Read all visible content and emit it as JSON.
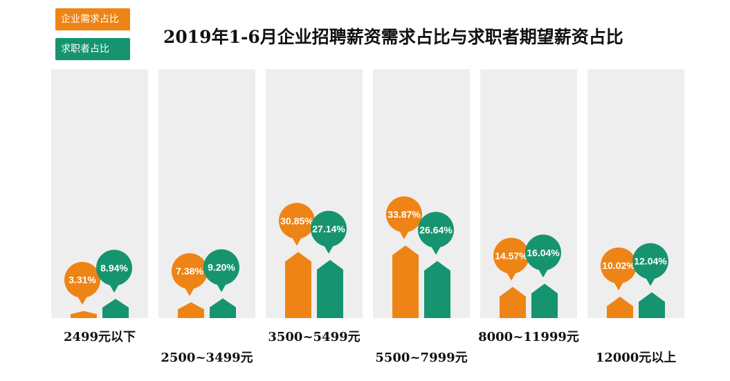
{
  "colors": {
    "demand": "#EE8416",
    "expected": "#16946F",
    "panel": "#EEEEEE"
  },
  "chart_data": {
    "type": "bar",
    "title": "2019年1-6月企业招聘薪资需求占比与求职者期望薪资占比",
    "categories": [
      "2499元以下",
      "2500~3499元",
      "3500~5499元",
      "5500~7999元",
      "8000~11999元",
      "12000元以上"
    ],
    "series": [
      {
        "name": "企业需求占比",
        "values": [
          3.31,
          7.38,
          30.85,
          33.87,
          14.57,
          10.02
        ],
        "labels": [
          "3.31%",
          "7.38%",
          "30.85%",
          "33.87%",
          "14.57%",
          "10.02%"
        ]
      },
      {
        "name": "求职者占比",
        "values": [
          8.94,
          9.2,
          27.14,
          26.64,
          16.04,
          12.04
        ],
        "labels": [
          "8.94%",
          "9.20%",
          "27.14%",
          "26.64%",
          "16.04%",
          "12.04%"
        ]
      }
    ],
    "legend": "top-left",
    "grid": false
  }
}
